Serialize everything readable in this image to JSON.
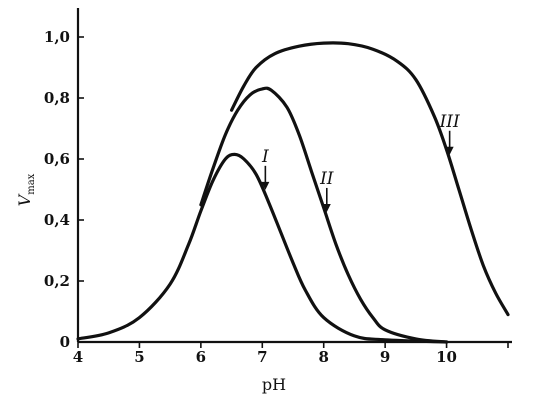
{
  "chart_data": {
    "type": "line",
    "xlabel": "pH",
    "ylabel": "V",
    "ylabel_sub": "max",
    "xlim": [
      4,
      11
    ],
    "ylim": [
      0,
      1.05
    ],
    "x_ticks": [
      {
        "value": 4,
        "label": "4"
      },
      {
        "value": 5,
        "label": "5"
      },
      {
        "value": 6,
        "label": "6"
      },
      {
        "value": 7,
        "label": "7"
      },
      {
        "value": 8,
        "label": "8"
      },
      {
        "value": 9,
        "label": "9"
      },
      {
        "value": 10,
        "label": "10"
      },
      {
        "value": 11,
        "label": ""
      }
    ],
    "y_ticks": [
      {
        "value": 0,
        "label": "0"
      },
      {
        "value": 0.2,
        "label": "0,2"
      },
      {
        "value": 0.4,
        "label": "0,4"
      },
      {
        "value": 0.6,
        "label": "0,6"
      },
      {
        "value": 0.8,
        "label": "0,8"
      },
      {
        "value": 1.0,
        "label": "1,0"
      }
    ],
    "grid": false,
    "legend": "none",
    "series": [
      {
        "name": "I",
        "arrow_x": 7.05,
        "points": [
          [
            4.0,
            0.01
          ],
          [
            4.5,
            0.03
          ],
          [
            5.0,
            0.08
          ],
          [
            5.5,
            0.19
          ],
          [
            5.8,
            0.32
          ],
          [
            6.0,
            0.43
          ],
          [
            6.2,
            0.53
          ],
          [
            6.4,
            0.6
          ],
          [
            6.55,
            0.615
          ],
          [
            6.7,
            0.6
          ],
          [
            6.9,
            0.55
          ],
          [
            7.1,
            0.46
          ],
          [
            7.3,
            0.36
          ],
          [
            7.5,
            0.26
          ],
          [
            7.7,
            0.17
          ],
          [
            8.0,
            0.08
          ],
          [
            8.5,
            0.02
          ],
          [
            9.0,
            0.007
          ],
          [
            10.0,
            0.0
          ]
        ]
      },
      {
        "name": "II",
        "arrow_x": 8.05,
        "points": [
          [
            6.0,
            0.45
          ],
          [
            6.2,
            0.57
          ],
          [
            6.4,
            0.68
          ],
          [
            6.6,
            0.76
          ],
          [
            6.8,
            0.81
          ],
          [
            7.0,
            0.83
          ],
          [
            7.15,
            0.825
          ],
          [
            7.4,
            0.77
          ],
          [
            7.6,
            0.68
          ],
          [
            7.8,
            0.56
          ],
          [
            8.0,
            0.44
          ],
          [
            8.2,
            0.32
          ],
          [
            8.4,
            0.22
          ],
          [
            8.6,
            0.14
          ],
          [
            8.8,
            0.08
          ],
          [
            9.0,
            0.04
          ],
          [
            9.5,
            0.01
          ],
          [
            10.0,
            0.0
          ]
        ]
      },
      {
        "name": "III",
        "arrow_x": 10.05,
        "points": [
          [
            6.5,
            0.76
          ],
          [
            6.7,
            0.84
          ],
          [
            6.9,
            0.9
          ],
          [
            7.2,
            0.945
          ],
          [
            7.6,
            0.97
          ],
          [
            8.0,
            0.98
          ],
          [
            8.4,
            0.978
          ],
          [
            8.8,
            0.96
          ],
          [
            9.2,
            0.92
          ],
          [
            9.5,
            0.86
          ],
          [
            9.8,
            0.74
          ],
          [
            10.0,
            0.63
          ],
          [
            10.2,
            0.5
          ],
          [
            10.4,
            0.37
          ],
          [
            10.6,
            0.25
          ],
          [
            10.8,
            0.16
          ],
          [
            11.0,
            0.09
          ]
        ]
      }
    ]
  }
}
